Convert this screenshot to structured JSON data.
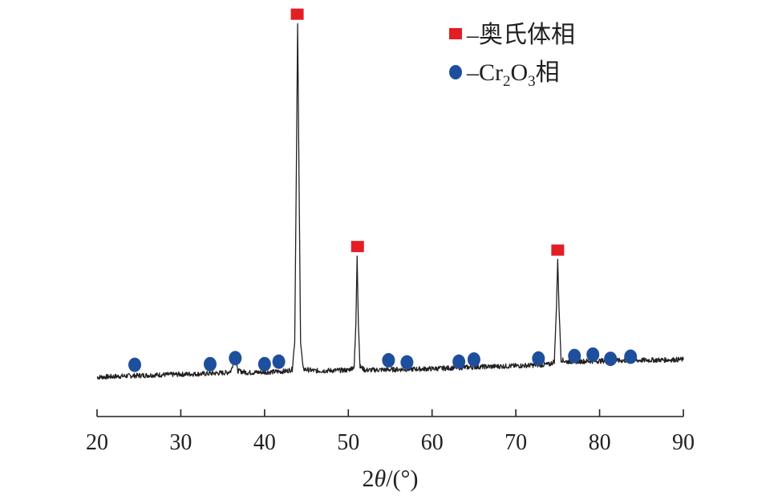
{
  "chart_data": {
    "type": "line",
    "xlabel_prefix": "2",
    "xlabel_symbol": "θ",
    "xlabel_suffix": "/(°)",
    "xlim": [
      20,
      90
    ],
    "x_ticks": [
      20,
      30,
      40,
      50,
      60,
      70,
      80,
      90
    ],
    "y_axis_shown": false,
    "grid": false,
    "legend_position": "top-right",
    "colors": {
      "austenite": "#e31e24",
      "cr2o3": "#1e4f9c",
      "line": "#231f20"
    },
    "series": [
      {
        "points": [
          [
            20.0,
            0.0
          ],
          [
            24.0,
            0.4
          ],
          [
            28.0,
            0.7
          ],
          [
            33.0,
            1.0
          ],
          [
            35.5,
            1.3
          ],
          [
            36.0,
            1.8
          ],
          [
            36.4,
            5.5
          ],
          [
            36.8,
            1.8
          ],
          [
            38.0,
            1.3
          ],
          [
            41.0,
            1.5
          ],
          [
            42.5,
            1.7
          ],
          [
            43.3,
            2.2
          ],
          [
            43.6,
            10.0
          ],
          [
            43.8,
            60.0
          ],
          [
            43.95,
            100.0
          ],
          [
            44.1,
            60.0
          ],
          [
            44.3,
            10.0
          ],
          [
            44.6,
            2.3
          ],
          [
            46.0,
            1.8
          ],
          [
            50.0,
            2.0
          ],
          [
            50.7,
            3.0
          ],
          [
            50.9,
            15.0
          ],
          [
            51.05,
            34.5
          ],
          [
            51.2,
            15.0
          ],
          [
            51.4,
            3.0
          ],
          [
            52.0,
            2.0
          ],
          [
            56.0,
            2.2
          ],
          [
            60.0,
            2.4
          ],
          [
            65.0,
            2.9
          ],
          [
            70.0,
            3.2
          ],
          [
            74.0,
            3.6
          ],
          [
            74.6,
            4.5
          ],
          [
            74.85,
            20.0
          ],
          [
            75.0,
            33.5
          ],
          [
            75.15,
            20.0
          ],
          [
            75.4,
            5.0
          ],
          [
            76.0,
            4.4
          ],
          [
            80.0,
            4.6
          ],
          [
            85.0,
            4.8
          ],
          [
            90.0,
            5.0
          ]
        ]
      }
    ],
    "austenite_markers": [
      {
        "x": 43.9,
        "y": 102.8
      },
      {
        "x": 51.1,
        "y": 37.0
      },
      {
        "x": 75.0,
        "y": 36.0
      }
    ],
    "cr2o3_markers": [
      {
        "x": 24.5,
        "y": 3.5
      },
      {
        "x": 33.5,
        "y": 3.7
      },
      {
        "x": 36.5,
        "y": 5.4
      },
      {
        "x": 40.0,
        "y": 3.7
      },
      {
        "x": 41.7,
        "y": 4.4
      },
      {
        "x": 54.8,
        "y": 4.8
      },
      {
        "x": 57.0,
        "y": 4.2
      },
      {
        "x": 63.2,
        "y": 4.4
      },
      {
        "x": 65.0,
        "y": 5.0
      },
      {
        "x": 72.7,
        "y": 5.3
      },
      {
        "x": 77.0,
        "y": 6.0
      },
      {
        "x": 79.2,
        "y": 6.4
      },
      {
        "x": 81.3,
        "y": 5.2
      },
      {
        "x": 83.7,
        "y": 5.8
      }
    ],
    "legend": [
      {
        "label": "–奥氏体相",
        "marker": "square"
      },
      {
        "label_pre": "–Cr",
        "sub1": "2",
        "label_mid": "O",
        "sub2": "3",
        "label_post": "相",
        "marker": "circle"
      }
    ]
  }
}
